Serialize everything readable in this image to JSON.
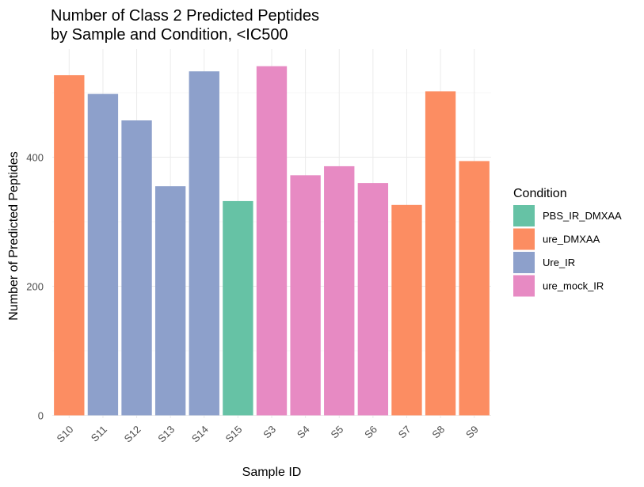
{
  "chart_data": {
    "type": "bar",
    "title": "Number of Class 2 Predicted Peptides\nby Sample and Condition, <IC500",
    "xlabel": "Sample ID",
    "ylabel": "Number of Predicted Peptides",
    "categories": [
      "S10",
      "S11",
      "S12",
      "S13",
      "S14",
      "S15",
      "S3",
      "S4",
      "S5",
      "S6",
      "S7",
      "S8",
      "S9"
    ],
    "values": [
      527,
      498,
      457,
      355,
      533,
      332,
      541,
      372,
      386,
      360,
      326,
      502,
      394
    ],
    "conditions": [
      "ure_DMXAA",
      "Ure_IR",
      "Ure_IR",
      "Ure_IR",
      "Ure_IR",
      "PBS_IR_DMXAA",
      "ure_mock_IR",
      "ure_mock_IR",
      "ure_mock_IR",
      "ure_mock_IR",
      "ure_DMXAA",
      "ure_DMXAA",
      "ure_DMXAA"
    ],
    "ylim": [
      0,
      570
    ],
    "yticks": [
      0,
      200,
      400
    ],
    "grid": true,
    "legend": {
      "title": "Condition",
      "placement": "right",
      "entries": [
        {
          "label": "PBS_IR_DMXAA",
          "color": "#66c2a5"
        },
        {
          "label": "ure_DMXAA",
          "color": "#fc8d62"
        },
        {
          "label": "Ure_IR",
          "color": "#8da0cb"
        },
        {
          "label": "ure_mock_IR",
          "color": "#e78ac3"
        }
      ]
    }
  }
}
